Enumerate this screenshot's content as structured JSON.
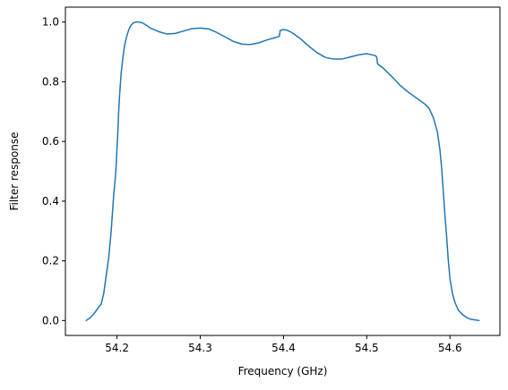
{
  "chart_data": {
    "type": "line",
    "title": "",
    "xlabel": "Frequency (GHz)",
    "ylabel": "Filter response",
    "xlim": [
      54.138,
      54.66
    ],
    "ylim": [
      -0.05,
      1.05
    ],
    "xticks": [
      54.2,
      54.3,
      54.4,
      54.5,
      54.6
    ],
    "yticks": [
      0.0,
      0.2,
      0.4,
      0.6,
      0.8,
      1.0
    ],
    "xtick_labels": [
      "54.2",
      "54.3",
      "54.4",
      "54.5",
      "54.6"
    ],
    "ytick_labels": [
      "0.0",
      "0.2",
      "0.4",
      "0.6",
      "0.8",
      "1.0"
    ],
    "grid": false,
    "legend": "none",
    "series": [
      {
        "color": "#1f77b4",
        "x": [
          54.163,
          54.168,
          54.173,
          54.178,
          54.181,
          54.184,
          54.187,
          54.19,
          54.193,
          54.196,
          54.198,
          54.199,
          54.2,
          54.201,
          54.202,
          54.203,
          54.204,
          54.205,
          54.207,
          54.209,
          54.211,
          54.213,
          54.215,
          54.217,
          54.22,
          54.223,
          54.226,
          54.23,
          54.235,
          54.24,
          54.25,
          54.26,
          54.27,
          54.28,
          54.29,
          54.3,
          54.31,
          54.32,
          54.33,
          54.34,
          54.35,
          54.36,
          54.37,
          54.38,
          54.39,
          54.395,
          54.396,
          54.4,
          54.405,
          54.41,
          54.42,
          54.43,
          54.44,
          54.45,
          54.46,
          54.47,
          54.48,
          54.49,
          54.5,
          54.51,
          54.512,
          54.513,
          54.52,
          54.53,
          54.54,
          54.55,
          54.56,
          54.57,
          54.575,
          54.58,
          54.585,
          54.588,
          54.59,
          54.592,
          54.594,
          54.596,
          54.598,
          54.6,
          54.603,
          54.606,
          54.61,
          54.615,
          54.62,
          54.625,
          54.63,
          54.635
        ],
        "y": [
          0.0,
          0.01,
          0.025,
          0.045,
          0.055,
          0.09,
          0.15,
          0.21,
          0.3,
          0.42,
          0.48,
          0.52,
          0.58,
          0.63,
          0.7,
          0.75,
          0.79,
          0.83,
          0.88,
          0.92,
          0.945,
          0.965,
          0.98,
          0.99,
          0.998,
          1.0,
          1.0,
          0.998,
          0.99,
          0.98,
          0.968,
          0.96,
          0.962,
          0.97,
          0.978,
          0.98,
          0.977,
          0.965,
          0.95,
          0.935,
          0.926,
          0.925,
          0.93,
          0.94,
          0.948,
          0.952,
          0.972,
          0.975,
          0.972,
          0.965,
          0.945,
          0.92,
          0.898,
          0.882,
          0.876,
          0.876,
          0.883,
          0.89,
          0.894,
          0.888,
          0.883,
          0.86,
          0.845,
          0.818,
          0.788,
          0.765,
          0.745,
          0.725,
          0.71,
          0.68,
          0.63,
          0.57,
          0.51,
          0.43,
          0.35,
          0.28,
          0.2,
          0.14,
          0.09,
          0.06,
          0.035,
          0.02,
          0.01,
          0.004,
          0.002,
          0.0
        ]
      }
    ]
  }
}
